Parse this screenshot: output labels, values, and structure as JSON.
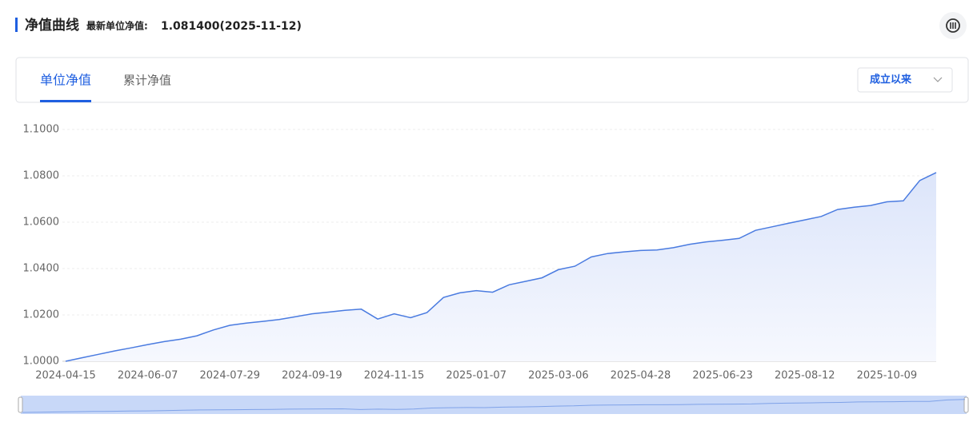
{
  "header": {
    "title": "净值曲线",
    "latest_label": "最新单位净值:",
    "latest_value": "1.081400(2025-11-12)"
  },
  "tabs": [
    "单位净值",
    "累计净值"
  ],
  "range_select": "成立以来",
  "chart_data": {
    "type": "area",
    "categories": [
      "2024-04-15",
      null,
      null,
      null,
      null,
      "2024-06-07",
      null,
      null,
      null,
      null,
      "2024-07-29",
      null,
      null,
      null,
      null,
      "2024-09-19",
      null,
      null,
      null,
      null,
      "2024-11-15",
      null,
      null,
      null,
      null,
      "2025-01-07",
      null,
      null,
      null,
      null,
      "2025-03-06",
      null,
      null,
      null,
      null,
      "2025-04-28",
      null,
      null,
      null,
      null,
      "2025-06-23",
      null,
      null,
      null,
      null,
      "2025-08-12",
      null,
      null,
      null,
      null,
      "2025-10-09",
      null,
      null,
      null
    ],
    "values": [
      1.0,
      1.0015,
      1.003,
      1.0045,
      1.0058,
      1.0072,
      1.0085,
      1.0095,
      1.011,
      1.0135,
      1.0155,
      1.0165,
      1.0172,
      1.018,
      1.0192,
      1.0205,
      1.0212,
      1.022,
      1.0225,
      1.0182,
      1.0205,
      1.0188,
      1.021,
      1.0275,
      1.0295,
      1.0305,
      1.0298,
      1.033,
      1.0345,
      1.036,
      1.0395,
      1.041,
      1.045,
      1.0465,
      1.0472,
      1.0478,
      1.048,
      1.049,
      1.0505,
      1.0515,
      1.0522,
      1.053,
      1.0565,
      1.058,
      1.0595,
      1.061,
      1.0625,
      1.0655,
      1.0665,
      1.0672,
      1.0688,
      1.0692,
      1.078,
      1.0814
    ],
    "color": "#4a7be0",
    "ylim": [
      1.0,
      1.1
    ],
    "yticks": [
      {
        "value": 1.0,
        "label": "1.0000"
      },
      {
        "value": 1.02,
        "label": "1.0200"
      },
      {
        "value": 1.04,
        "label": "1.0400"
      },
      {
        "value": 1.06,
        "label": "1.0600"
      },
      {
        "value": 1.08,
        "label": "1.0800"
      },
      {
        "value": 1.1,
        "label": "1.1000"
      }
    ],
    "grid": true
  }
}
